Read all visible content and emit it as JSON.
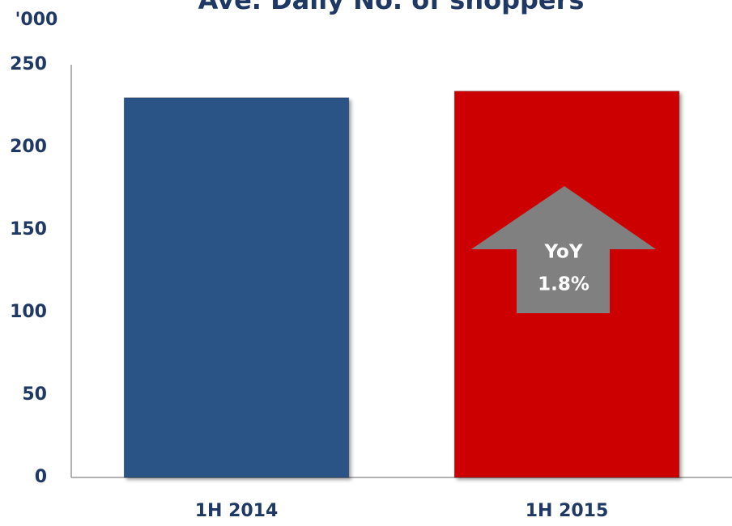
{
  "chart_data": {
    "type": "bar",
    "title": "Ave. Daily No. of shoppers",
    "y_label": "'000",
    "categories": [
      "1H 2014",
      "1H 2015"
    ],
    "values": [
      230,
      234
    ],
    "colors": [
      "#2a5286",
      "#cc0000"
    ],
    "ylim": [
      0,
      250
    ],
    "yticks": [
      0,
      50,
      100,
      150,
      200,
      250
    ],
    "grid": false,
    "annotations": [
      "YoY",
      "1.8%"
    ]
  }
}
